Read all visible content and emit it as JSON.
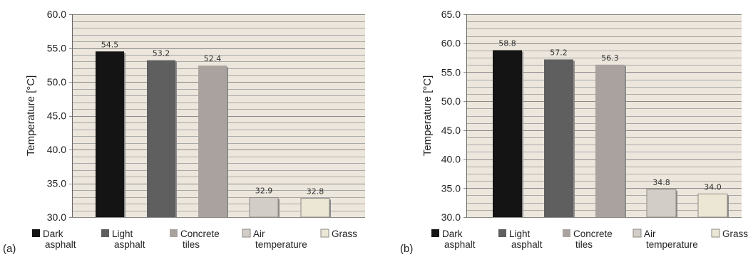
{
  "chart_data": [
    {
      "type": "bar",
      "panel_label": "(a)",
      "ylabel": "Temperature [°C]",
      "ylim": [
        30.0,
        60.0
      ],
      "yticks": [
        "30.0",
        "35.0",
        "40.0",
        "45.0",
        "50.0",
        "55.0",
        "60.0"
      ],
      "grid": true,
      "categories": [
        "Dark asphalt",
        "Light asphalt",
        "Concrete tiles",
        "Air temperature",
        "Grass"
      ],
      "values": [
        54.5,
        53.2,
        52.4,
        32.9,
        32.8
      ],
      "value_labels": [
        "54.5",
        "53.2",
        "52.4",
        "32.9",
        "32.8"
      ],
      "legend": [
        {
          "line1": "Dark",
          "line2": "asphalt"
        },
        {
          "line1": "Light",
          "line2": "asphalt"
        },
        {
          "line1": "Concrete",
          "line2": "tiles"
        },
        {
          "line1": "Air",
          "line2": "temperature"
        },
        {
          "line1": "Grass",
          "line2": ""
        }
      ]
    },
    {
      "type": "bar",
      "panel_label": "(b)",
      "ylabel": "Temperature [°C]",
      "ylim": [
        30.0,
        65.0
      ],
      "yticks": [
        "30.0",
        "35.0",
        "40.0",
        "45.0",
        "50.0",
        "55.0",
        "60.0",
        "65.0"
      ],
      "grid": true,
      "categories": [
        "Dark asphalt",
        "Light asphalt",
        "Concrete tiles",
        "Air temperature",
        "Grass"
      ],
      "values": [
        58.8,
        57.2,
        56.3,
        34.8,
        34.0
      ],
      "value_labels": [
        "58.8",
        "57.2",
        "56.3",
        "34.8",
        "34.0"
      ],
      "legend": [
        {
          "line1": "Dark",
          "line2": "asphalt"
        },
        {
          "line1": "Light",
          "line2": "asphalt"
        },
        {
          "line1": "Concrete",
          "line2": "tiles"
        },
        {
          "line1": "Air",
          "line2": "temperature"
        },
        {
          "line1": "Grass",
          "line2": ""
        }
      ]
    }
  ],
  "colors": {
    "plot_bg": "#ede6dc",
    "grid": "#a8a8a8",
    "bars": [
      "#141414",
      "#5f5f5f",
      "#aaa29e",
      "#d2cdc6",
      "#ece6d4"
    ]
  }
}
